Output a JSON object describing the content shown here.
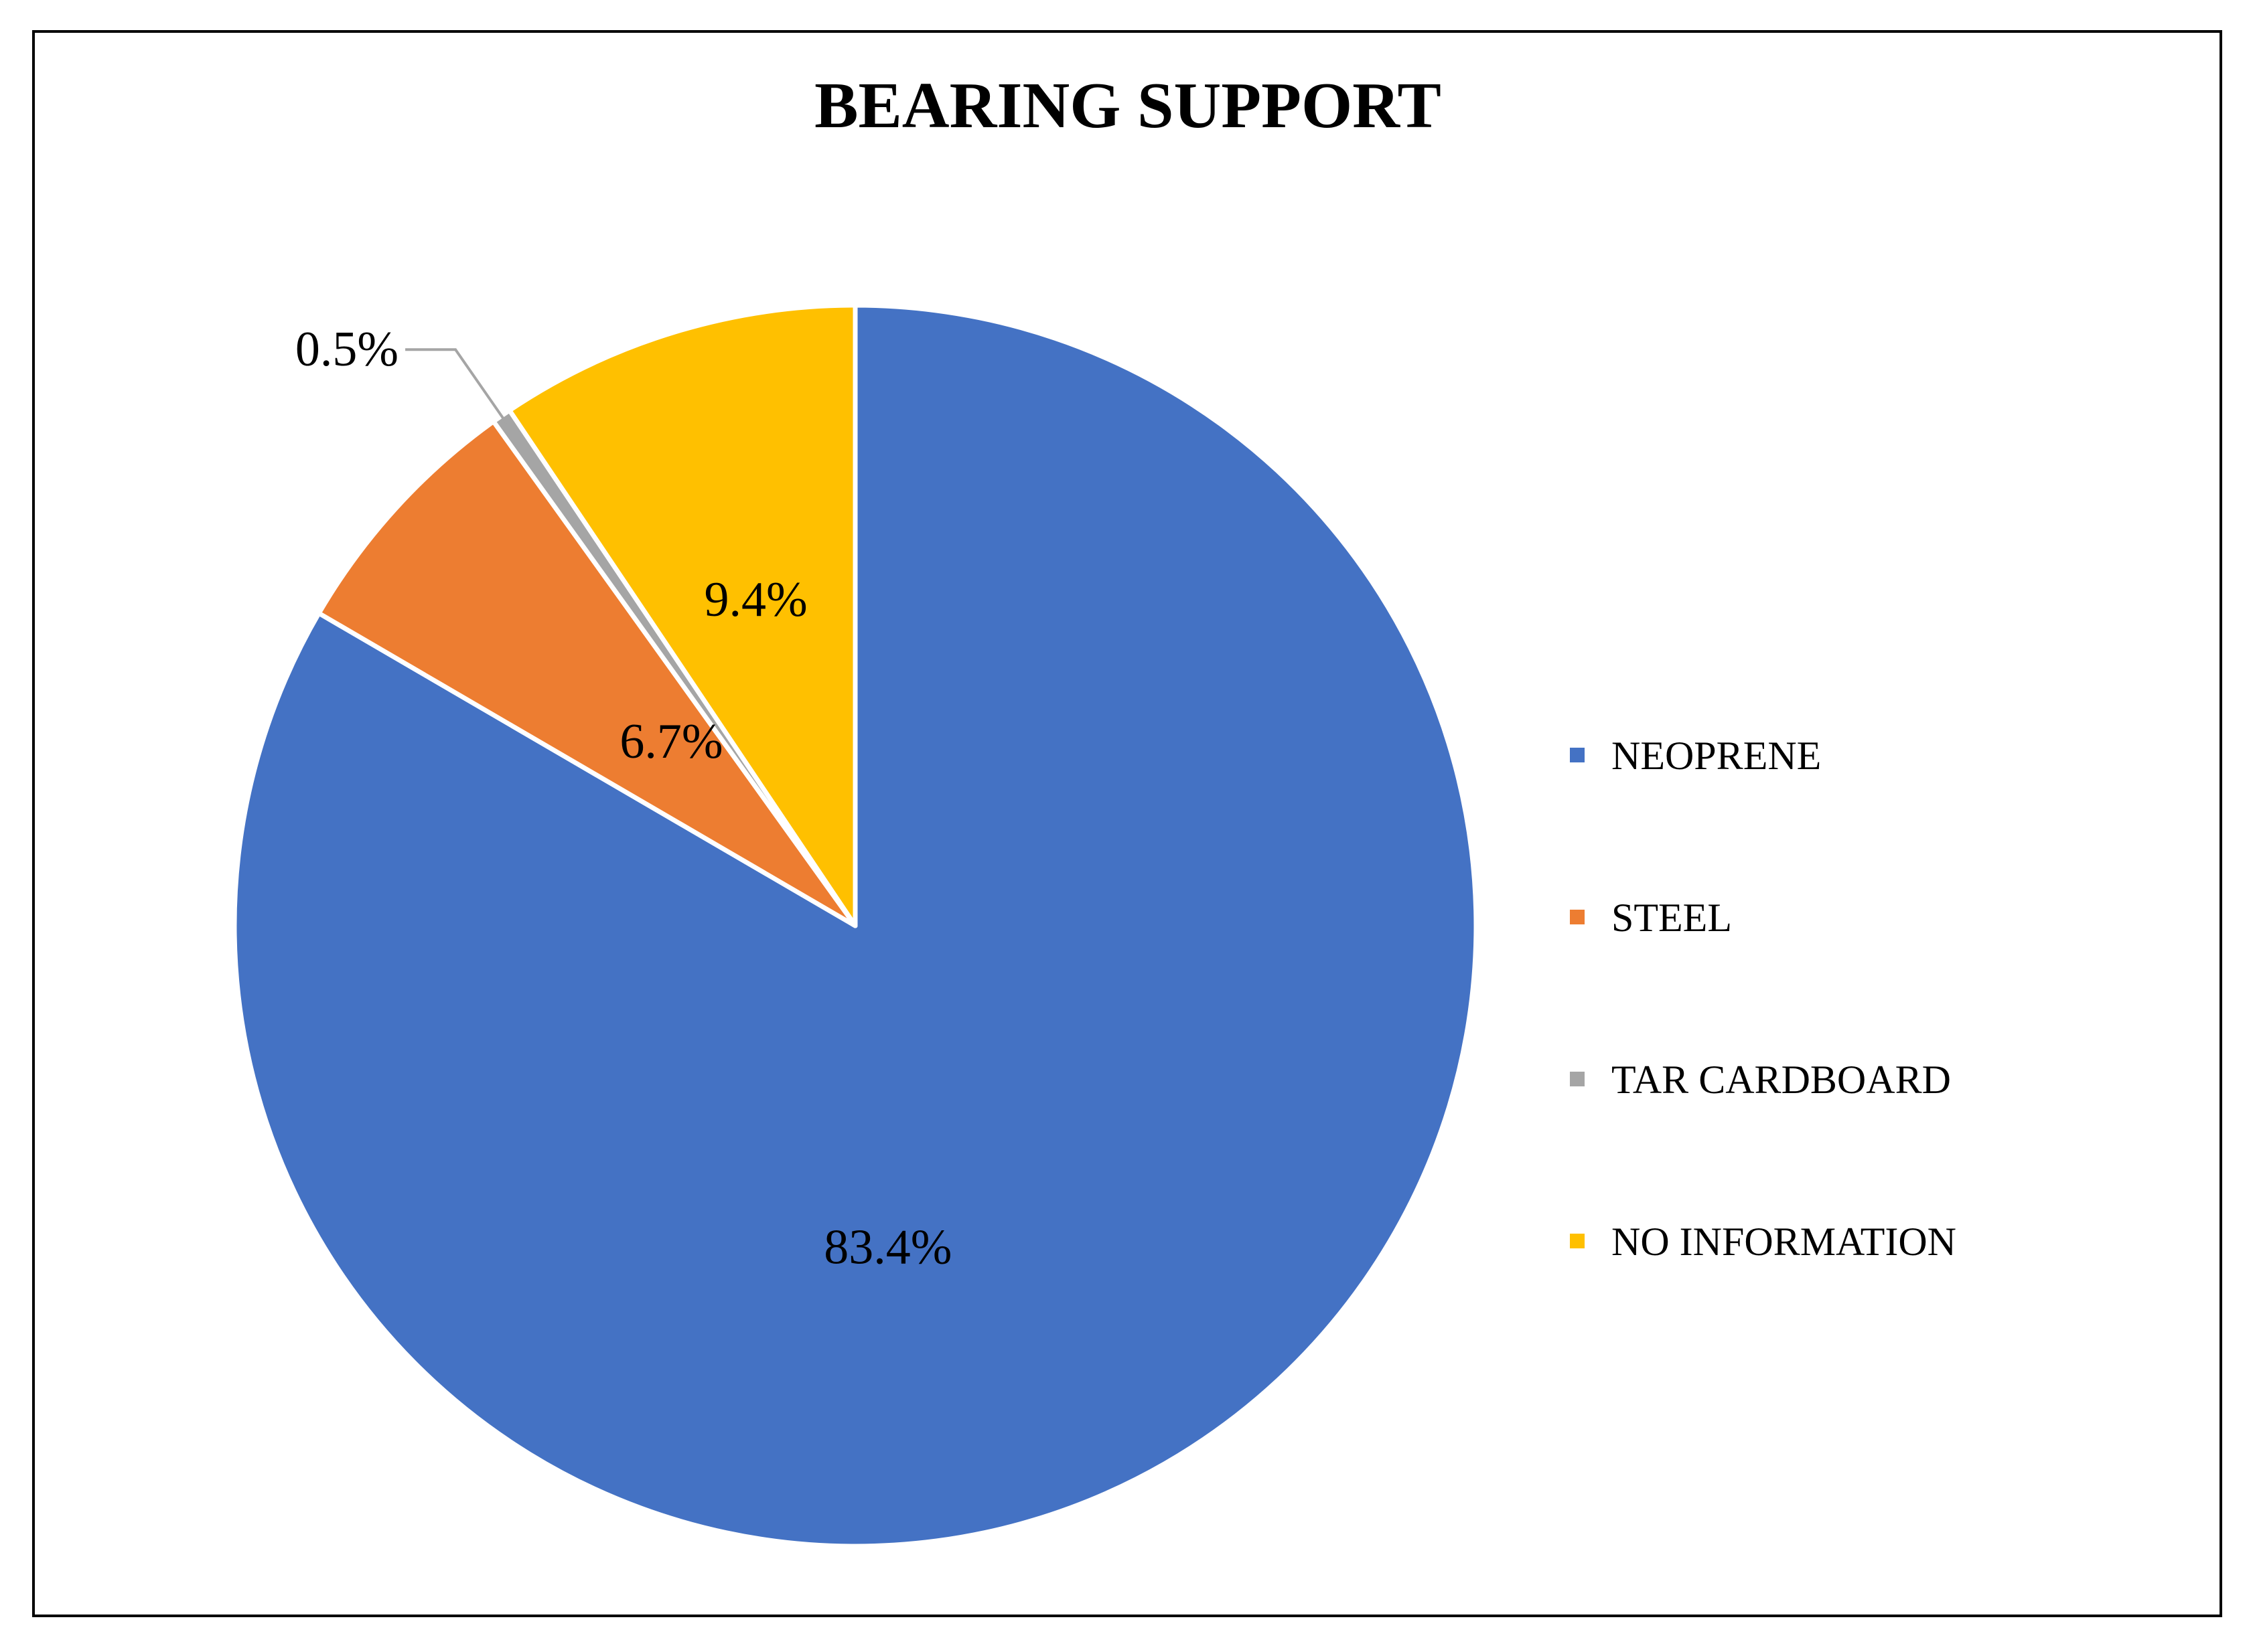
{
  "chart_data": {
    "type": "pie",
    "title": "BEARING SUPPORT",
    "categories": [
      "NEOPRENE",
      "STEEL",
      "TAR CARDBOARD",
      "NO INFORMATION"
    ],
    "values": [
      83.4,
      6.7,
      0.5,
      9.4
    ],
    "labels": [
      "83.4%",
      "6.7%",
      "0.5%",
      "9.4%"
    ],
    "colors": [
      "#4472C4",
      "#ED7D31",
      "#A5A5A5",
      "#FFC000"
    ],
    "start_angle": "top (12 o'clock)",
    "direction": "clockwise",
    "legend_position": "right"
  }
}
